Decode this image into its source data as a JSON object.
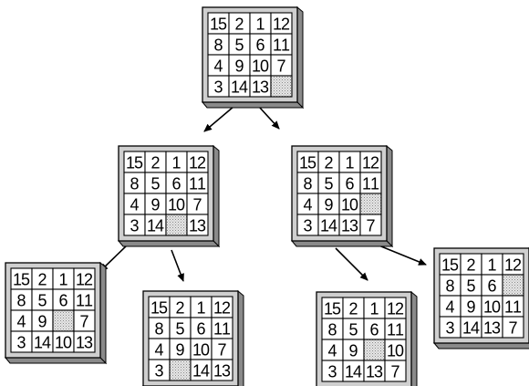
{
  "diagram": {
    "title": "",
    "boards": [
      {
        "id": "root",
        "tiles": [
          [
            15,
            2,
            1,
            12
          ],
          [
            8,
            5,
            6,
            11
          ],
          [
            4,
            9,
            10,
            7
          ],
          [
            3,
            14,
            13,
            0
          ]
        ]
      },
      {
        "id": "level1-left",
        "tiles": [
          [
            15,
            2,
            1,
            12
          ],
          [
            8,
            5,
            6,
            11
          ],
          [
            4,
            9,
            10,
            7
          ],
          [
            3,
            14,
            0,
            13
          ]
        ]
      },
      {
        "id": "level1-right",
        "tiles": [
          [
            15,
            2,
            1,
            12
          ],
          [
            8,
            5,
            6,
            11
          ],
          [
            4,
            9,
            10,
            0
          ],
          [
            3,
            14,
            13,
            7
          ]
        ]
      },
      {
        "id": "level2-a",
        "tiles": [
          [
            15,
            2,
            1,
            12
          ],
          [
            8,
            5,
            6,
            11
          ],
          [
            4,
            9,
            0,
            7
          ],
          [
            3,
            14,
            10,
            13
          ]
        ]
      },
      {
        "id": "level2-b",
        "tiles": [
          [
            15,
            2,
            1,
            12
          ],
          [
            8,
            5,
            6,
            11
          ],
          [
            4,
            9,
            10,
            7
          ],
          [
            3,
            0,
            14,
            13
          ]
        ]
      },
      {
        "id": "level2-c",
        "tiles": [
          [
            15,
            2,
            1,
            12
          ],
          [
            8,
            5,
            6,
            11
          ],
          [
            4,
            9,
            0,
            10
          ],
          [
            3,
            14,
            13,
            7
          ]
        ]
      },
      {
        "id": "level2-d",
        "tiles": [
          [
            15,
            2,
            1,
            12
          ],
          [
            8,
            5,
            6,
            0
          ],
          [
            4,
            9,
            10,
            11
          ],
          [
            3,
            14,
            13,
            7
          ]
        ]
      }
    ],
    "edges": [
      {
        "from": "root",
        "to": "level1-left"
      },
      {
        "from": "root",
        "to": "level1-right"
      },
      {
        "from": "level1-left",
        "to": "level2-a"
      },
      {
        "from": "level1-left",
        "to": "level2-b"
      },
      {
        "from": "level1-right",
        "to": "level2-c"
      },
      {
        "from": "level1-right",
        "to": "level2-d"
      }
    ],
    "blank_marker": 0
  }
}
